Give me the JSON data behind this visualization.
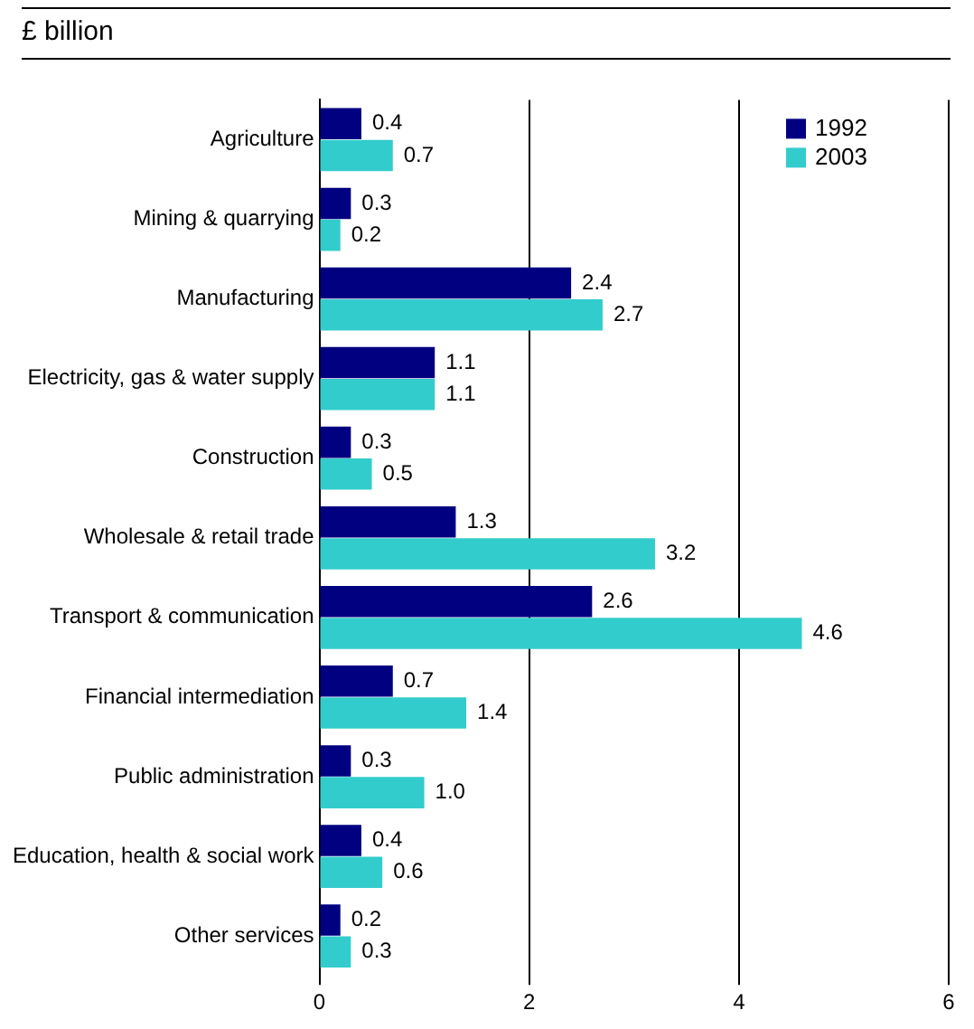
{
  "chart_data": {
    "type": "bar",
    "orientation": "horizontal",
    "title": "£ billion",
    "categories": [
      "Agriculture",
      "Mining & quarrying",
      "Manufacturing",
      "Electricity, gas & water supply",
      "Construction",
      "Wholesale & retail trade",
      "Transport & communication",
      "Financial intermediation",
      "Public administration",
      "Education, health & social work",
      "Other services"
    ],
    "series": [
      {
        "name": "1992",
        "color": "#000080",
        "values": [
          0.4,
          0.3,
          2.4,
          1.1,
          0.3,
          1.3,
          2.6,
          0.7,
          0.3,
          0.4,
          0.2
        ],
        "value_labels": [
          "0.4",
          "0.3",
          "2.4",
          "1.1",
          "0.3",
          "1.3",
          "2.6",
          "0.7",
          "0.3",
          "0.4",
          "0.2"
        ]
      },
      {
        "name": "2003",
        "color": "#33cccc",
        "values": [
          0.7,
          0.2,
          2.7,
          1.1,
          0.5,
          3.2,
          4.6,
          1.4,
          1.0,
          0.6,
          0.3
        ],
        "value_labels": [
          "0.7",
          "0.2",
          "2.7",
          "1.1",
          "0.5",
          "3.2",
          "4.6",
          "1.4",
          "1.0",
          "0.6",
          "0.3"
        ]
      }
    ],
    "xlim": [
      0,
      6
    ],
    "xticks": [
      0,
      2,
      4,
      6
    ],
    "grid": "x",
    "legend": "top right"
  }
}
